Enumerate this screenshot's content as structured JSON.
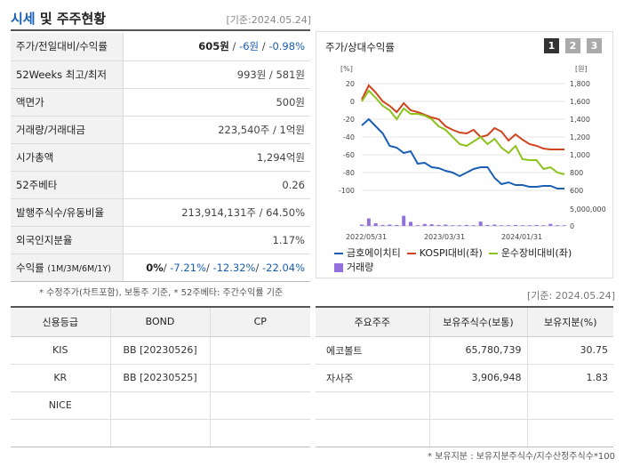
{
  "header": {
    "title_accent": "시세",
    "title_rest": " 및 주주현황",
    "date": "[기준:2024.05.24]"
  },
  "quote": {
    "rows": [
      {
        "label": "주가/전일대비/수익률"
      },
      {
        "label": "52Weeks 최고/최저",
        "value": "993원 / 581원"
      },
      {
        "label": "액면가",
        "value": "500원"
      },
      {
        "label": "거래량/거래대금",
        "value": "223,540주 / 1억원"
      },
      {
        "label": "시가총액",
        "value": "1,294억원"
      },
      {
        "label": "52주베타",
        "value": "0.26"
      },
      {
        "label": "발행주식수/유동비율",
        "value": "213,914,131주 / 64.50%"
      },
      {
        "label": "외국인지분율",
        "value": "1.17%"
      },
      {
        "label": "수익률",
        "label_small": "(1M/3M/6M/1Y)"
      }
    ],
    "price": "605원",
    "sep1": " / ",
    "change": "-6원",
    "sep2": " / ",
    "pct": "-0.98%",
    "ret_0": "0%",
    "ret_sep": "/ ",
    "ret_1": "-7.21%",
    "ret_2": "-12.32%",
    "ret_3": "-22.04%"
  },
  "notes": {
    "left": "* 수정주가(차트포함), 보통주 기준, * 52주베타: 주간수익률 기준",
    "right": "* 보유지분 : 보유지분주식수/지수산정주식수*100"
  },
  "chart_panel": {
    "title": "주가/상대수익률",
    "tabs": [
      "1",
      "2",
      "3"
    ],
    "date": "[기준: 2024.05.24]"
  },
  "chart_data": {
    "type": "line",
    "left_unit": "[%]",
    "right_unit": "[원]",
    "left_ticks": [
      "20",
      "0",
      "-20",
      "-40",
      "-60",
      "-80",
      "-100"
    ],
    "right_ticks": [
      "1,800",
      "1,600",
      "1,400",
      "1,200",
      "1,000",
      "800",
      "600"
    ],
    "volume_tick": "5,000,000",
    "volume_zero": "0",
    "x_labels": [
      "2022/05/31",
      "2023/03/31",
      "2024/01/31"
    ],
    "left_range": [
      -100,
      20
    ],
    "series": [
      {
        "name": "금호에이치티",
        "color": "#1a5fb4",
        "values": [
          -27,
          -20,
          -28,
          -36,
          -50,
          -52,
          -58,
          -56,
          -70,
          -69,
          -74,
          -75,
          -78,
          -80,
          -84,
          -80,
          -76,
          -74,
          -74,
          -86,
          -93,
          -91,
          -94,
          -94,
          -96,
          -96,
          -95,
          -95,
          -98,
          -98
        ]
      },
      {
        "name": "KOSPI대비(좌)",
        "color": "#d0441e",
        "values": [
          2,
          18,
          10,
          0,
          -5,
          -12,
          -2,
          -10,
          -12,
          -15,
          -18,
          -20,
          -28,
          -32,
          -35,
          -36,
          -32,
          -40,
          -38,
          -30,
          -34,
          -44,
          -37,
          -43,
          -48,
          -50,
          -53,
          -54,
          -54,
          -54
        ]
      },
      {
        "name": "운수장비대비(좌)",
        "color": "#8dc21f",
        "values": [
          0,
          12,
          4,
          -5,
          -10,
          -20,
          -8,
          -14,
          -14,
          -16,
          -20,
          -28,
          -32,
          -40,
          -48,
          -50,
          -45,
          -40,
          -48,
          -42,
          -52,
          -58,
          -50,
          -65,
          -66,
          -66,
          -76,
          -74,
          -80,
          -82
        ]
      },
      {
        "name": "거래량",
        "color": "#9370db",
        "values": [
          0.4,
          2.2,
          0.8,
          0.3,
          0.4,
          0.3,
          3.0,
          1.2,
          0.2,
          0.6,
          0.5,
          0.3,
          0.4,
          0.2,
          0.2,
          0.3,
          0.2,
          1.3,
          0.3,
          0.4,
          0.2,
          0.2,
          0.3,
          0.2,
          0.2,
          0.3,
          0.2,
          0.6,
          0.2,
          0.2
        ]
      }
    ]
  },
  "credit": {
    "headers": [
      "신용등급",
      "BOND",
      "CP"
    ],
    "rows": [
      {
        "agency": "KIS",
        "bond": "BB  [20230526]",
        "cp": ""
      },
      {
        "agency": "KR",
        "bond": "BB  [20230525]",
        "cp": ""
      },
      {
        "agency": "NICE",
        "bond": "",
        "cp": ""
      },
      {
        "agency": "",
        "bond": "",
        "cp": ""
      }
    ]
  },
  "holders": {
    "headers": [
      "주요주주",
      "보유주식수(보통)",
      "보유지분(%)"
    ],
    "rows": [
      {
        "name": "에코볼트",
        "shares": "65,780,739",
        "pct": "30.75"
      },
      {
        "name": "자사주",
        "shares": "3,906,948",
        "pct": "1.83"
      },
      {
        "name": "",
        "shares": "",
        "pct": ""
      },
      {
        "name": "",
        "shares": "",
        "pct": ""
      }
    ]
  }
}
